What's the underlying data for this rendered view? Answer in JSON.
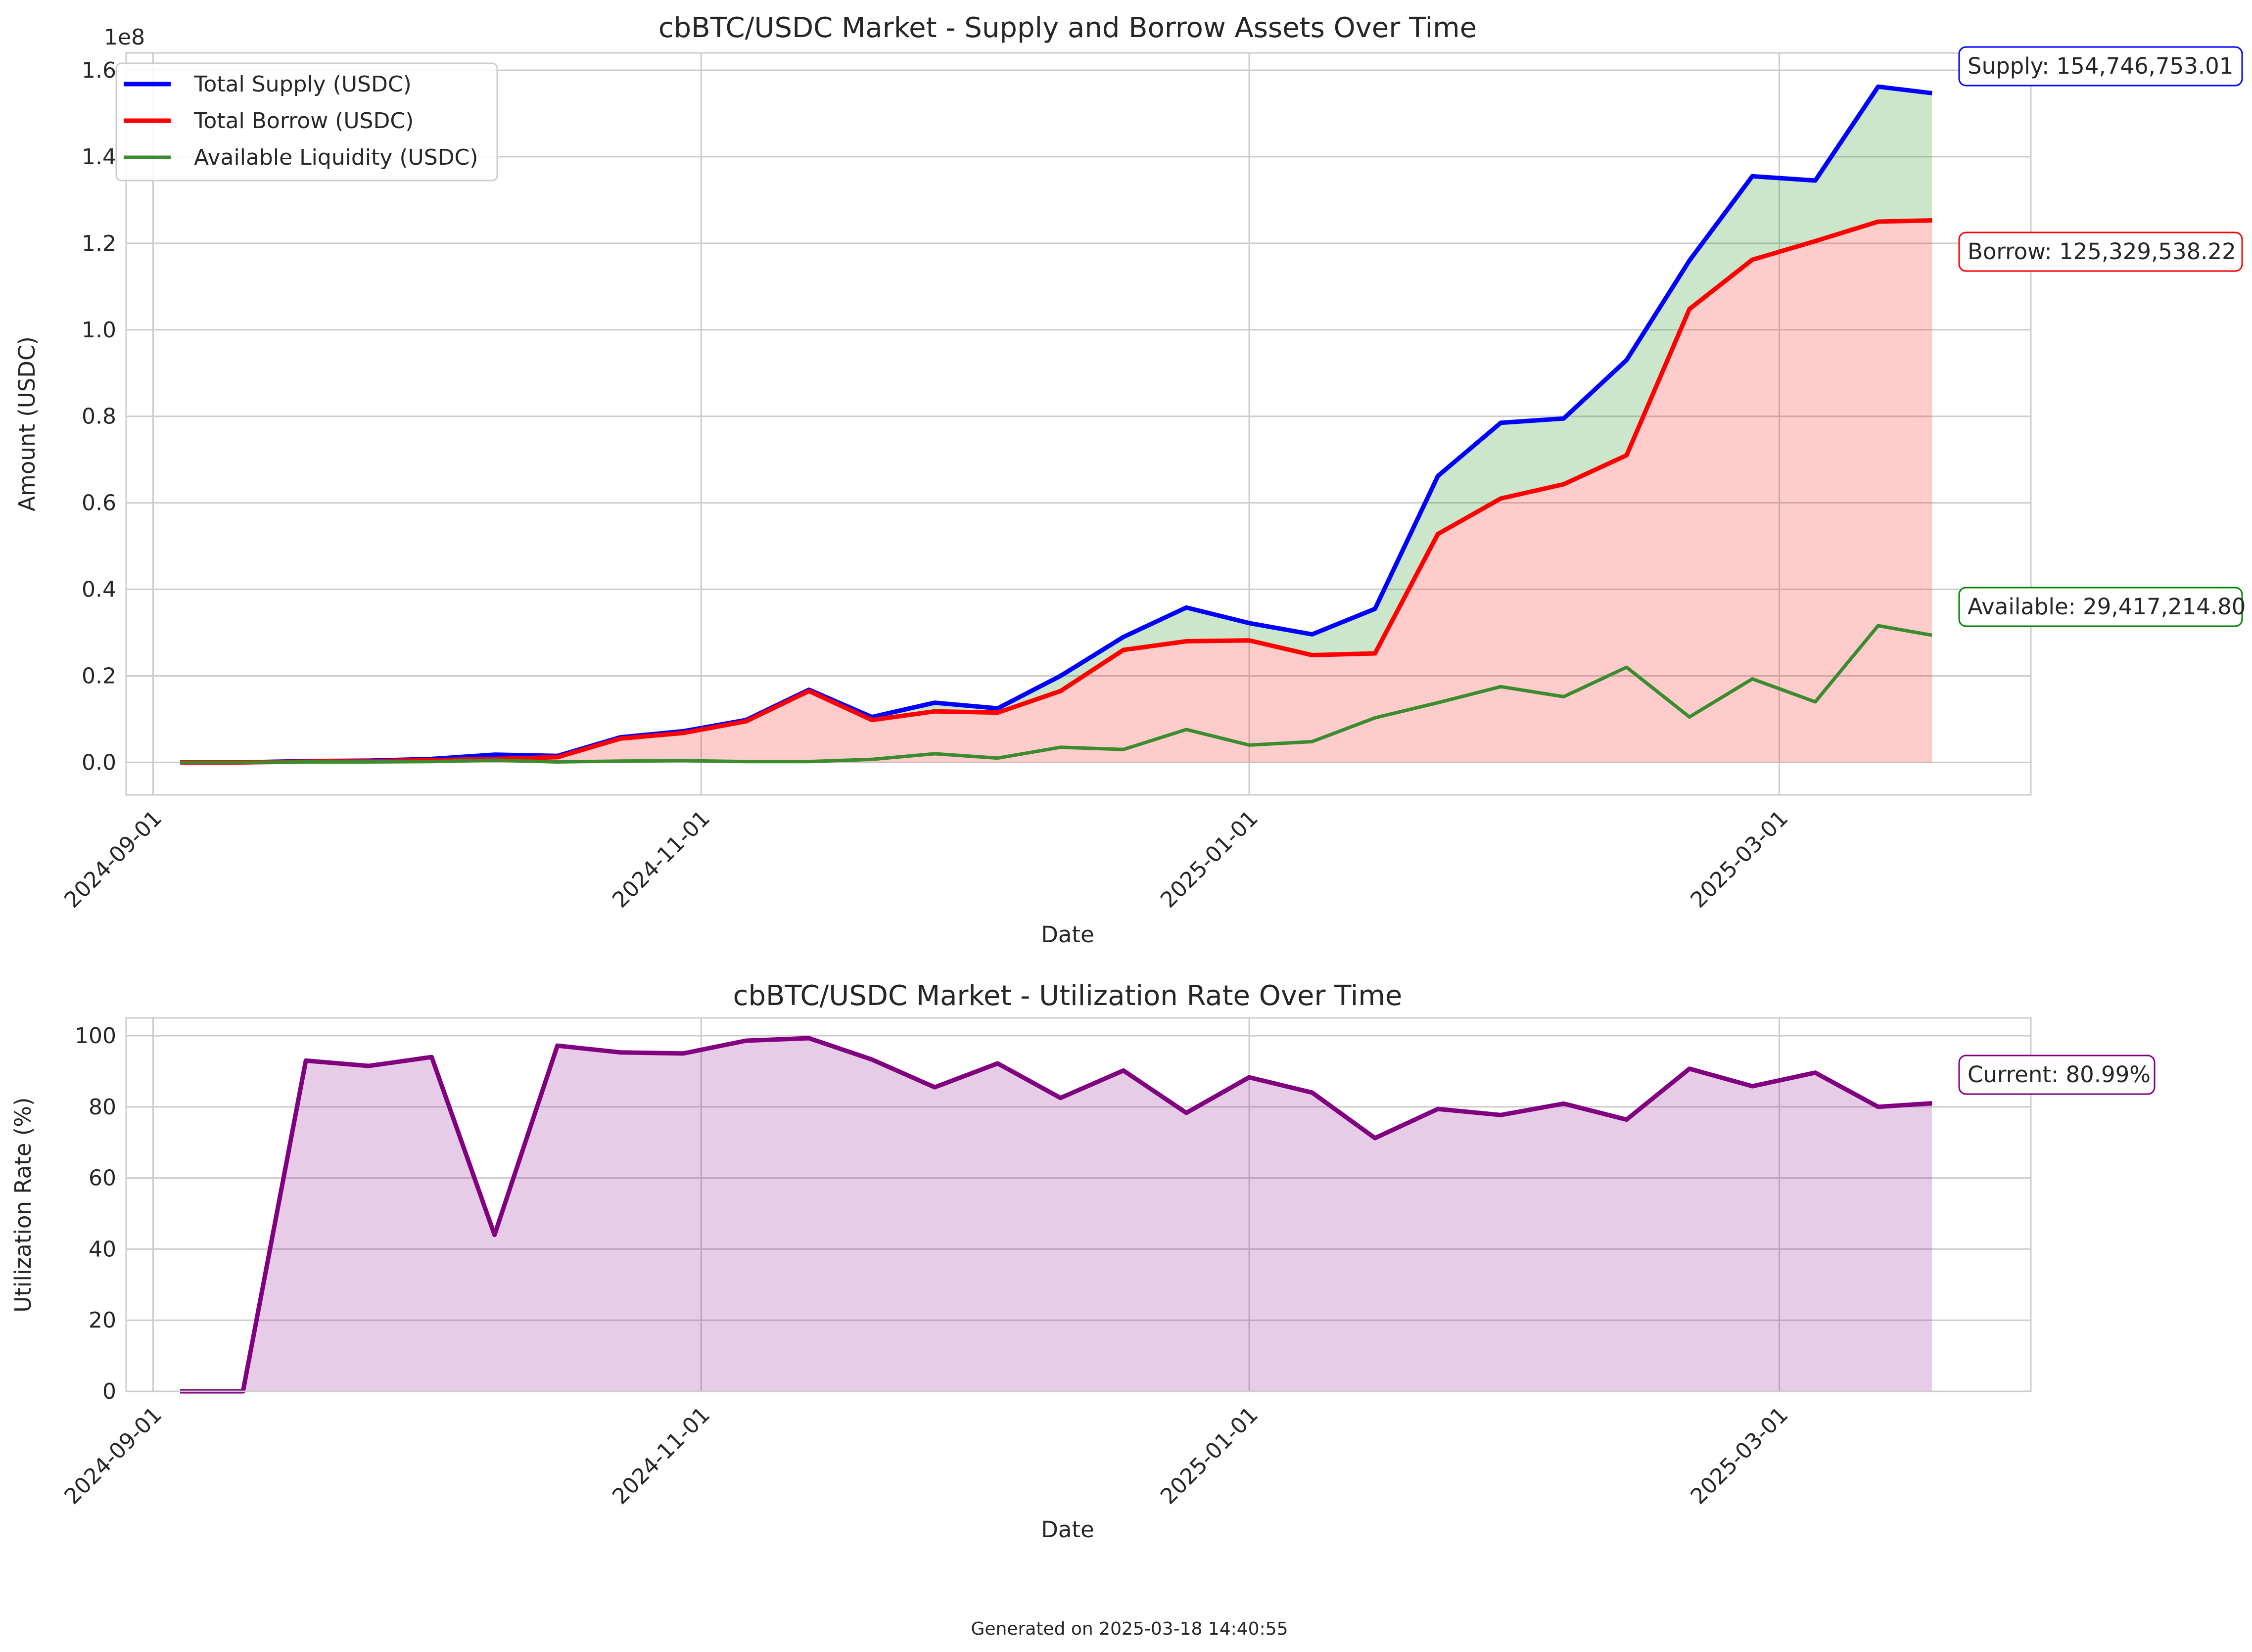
{
  "footer": "Generated on 2025-03-18 14:40:55",
  "chart_data": [
    {
      "type": "line",
      "title": "cbBTC/USDC Market - Supply and Borrow Assets Over Time",
      "xlabel": "Date",
      "ylabel": "Amount (USDC)",
      "y_offset_label": "1e8",
      "x_ticks": [
        "2024-09-01",
        "2024-11-01",
        "2025-01-01",
        "2025-03-01"
      ],
      "y_ticks": [
        "0.0",
        "0.2",
        "0.4",
        "0.6",
        "0.8",
        "1.0",
        "1.2",
        "1.4",
        "1.6"
      ],
      "xlim": [
        "2024-08-29",
        "2025-03-29"
      ],
      "ylim": [
        -0.075,
        1.64
      ],
      "y_scale_note": "values in units of 1e8",
      "grid": true,
      "legend_position": "upper-left",
      "x": [
        "2024-09-04",
        "2024-09-11",
        "2024-09-18",
        "2024-09-25",
        "2024-10-02",
        "2024-10-09",
        "2024-10-16",
        "2024-10-23",
        "2024-10-30",
        "2024-11-06",
        "2024-11-13",
        "2024-11-20",
        "2024-11-27",
        "2024-12-04",
        "2024-12-11",
        "2024-12-18",
        "2024-12-25",
        "2025-01-01",
        "2025-01-08",
        "2025-01-15",
        "2025-01-22",
        "2025-01-29",
        "2025-02-05",
        "2025-02-12",
        "2025-02-19",
        "2025-02-26",
        "2025-03-05",
        "2025-03-12",
        "2025-03-18"
      ],
      "series": [
        {
          "name": "Total Supply (USDC)",
          "color": "#0000ff",
          "values": [
            0.0,
            0.0,
            0.003,
            0.004,
            0.008,
            0.018,
            0.015,
            0.058,
            0.072,
            0.098,
            0.168,
            0.105,
            0.138,
            0.125,
            0.2,
            0.29,
            0.358,
            0.322,
            0.296,
            0.355,
            0.662,
            0.785,
            0.795,
            0.93,
            1.16,
            1.355,
            1.345,
            1.562,
            1.547
          ]
        },
        {
          "name": "Total Borrow (USDC)",
          "color": "#ff0000",
          "values": [
            0.0,
            0.0,
            0.002,
            0.003,
            0.005,
            0.008,
            0.012,
            0.055,
            0.068,
            0.095,
            0.165,
            0.098,
            0.118,
            0.115,
            0.165,
            0.26,
            0.28,
            0.282,
            0.248,
            0.252,
            0.528,
            0.61,
            0.643,
            0.71,
            1.048,
            1.162,
            1.205,
            1.25,
            1.253
          ]
        },
        {
          "name": "Available Liquidity (USDC)",
          "color": "#3a8c2e",
          "values": [
            0.0,
            0.0,
            0.001,
            0.001,
            0.002,
            0.005,
            0.001,
            0.003,
            0.004,
            0.002,
            0.002,
            0.007,
            0.02,
            0.01,
            0.035,
            0.03,
            0.076,
            0.04,
            0.048,
            0.103,
            0.138,
            0.175,
            0.152,
            0.22,
            0.105,
            0.193,
            0.14,
            0.316,
            0.294
          ]
        }
      ],
      "annotations": [
        {
          "text": "Supply: 154,746,753.01",
          "color": "#0000ff"
        },
        {
          "text": "Borrow: 125,329,538.22",
          "color": "#ff0000"
        },
        {
          "text": "Available: 29,417,214.80",
          "color": "#008000"
        }
      ],
      "fills": [
        {
          "between": [
            "Total Borrow (USDC)",
            "Total Supply (USDC)"
          ],
          "color": "#008000",
          "opacity": 0.2
        },
        {
          "between": [
            "zero",
            "Total Borrow (USDC)"
          ],
          "color": "#ff0000",
          "opacity": 0.2
        }
      ]
    },
    {
      "type": "area",
      "title": "cbBTC/USDC Market - Utilization Rate Over Time",
      "xlabel": "Date",
      "ylabel": "Utilization Rate (%)",
      "x_ticks": [
        "2024-09-01",
        "2024-11-01",
        "2025-01-01",
        "2025-03-01"
      ],
      "y_ticks": [
        "0",
        "20",
        "40",
        "60",
        "80",
        "100"
      ],
      "xlim": [
        "2024-08-29",
        "2025-03-29"
      ],
      "ylim": [
        0,
        105
      ],
      "grid": true,
      "x": [
        "2024-09-04",
        "2024-09-11",
        "2024-09-18",
        "2024-09-25",
        "2024-10-02",
        "2024-10-09",
        "2024-10-16",
        "2024-10-23",
        "2024-10-30",
        "2024-11-06",
        "2024-11-13",
        "2024-11-20",
        "2024-11-27",
        "2024-12-04",
        "2024-12-11",
        "2024-12-18",
        "2024-12-25",
        "2025-01-01",
        "2025-01-08",
        "2025-01-15",
        "2025-01-22",
        "2025-01-29",
        "2025-02-05",
        "2025-02-12",
        "2025-02-19",
        "2025-02-26",
        "2025-03-05",
        "2025-03-12",
        "2025-03-18"
      ],
      "series": [
        {
          "color": "#800080",
          "values": [
            0.0,
            0.0,
            93.0,
            91.5,
            94.0,
            44.0,
            97.2,
            95.3,
            95.0,
            98.6,
            99.3,
            93.3,
            85.5,
            92.2,
            82.5,
            90.2,
            78.3,
            88.3,
            84.0,
            71.2,
            79.4,
            77.7,
            80.9,
            76.4,
            90.7,
            85.8,
            89.6,
            80.0,
            80.99
          ]
        }
      ],
      "annotations": [
        {
          "text": "Current: 80.99%",
          "color": "#800080"
        }
      ]
    }
  ]
}
